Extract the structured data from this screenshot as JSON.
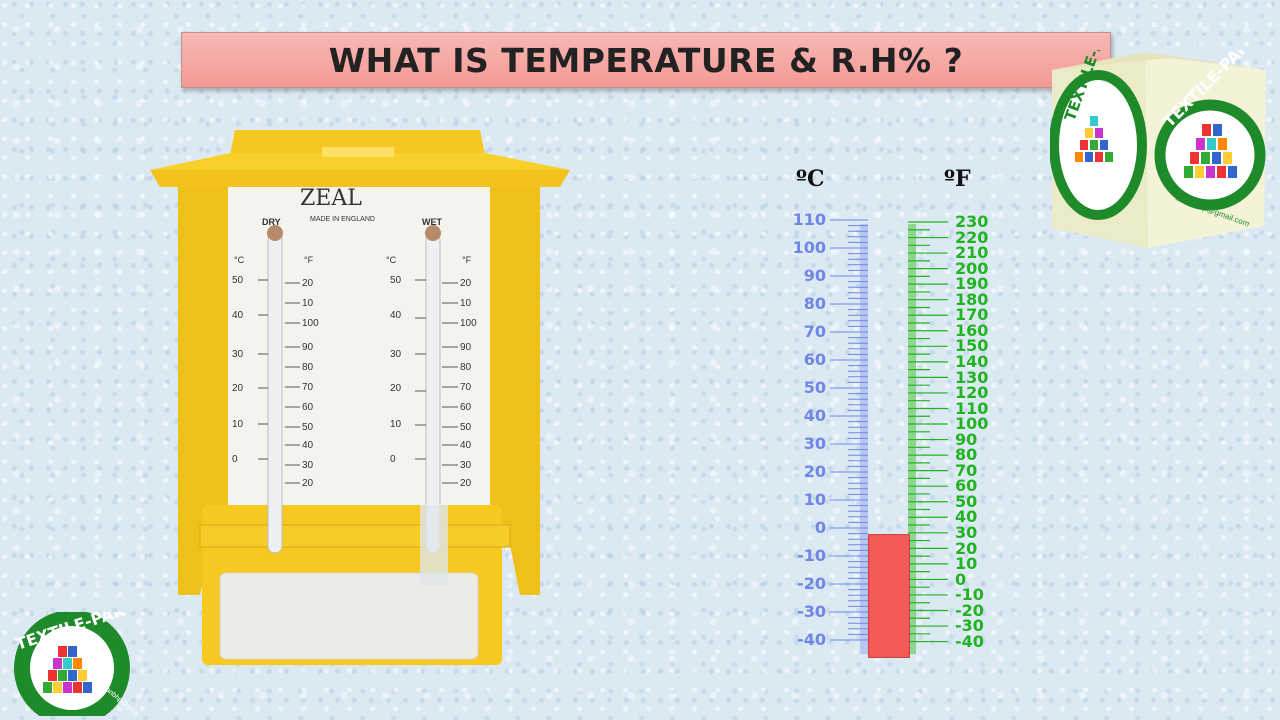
{
  "slide": {
    "title": "WHAT IS TEMPERATURE & R.H% ?"
  },
  "hygrometer": {
    "brand": "ZEAL",
    "made_in": "MADE IN ENGLAND",
    "dry_label": "DRY",
    "wet_label": "WET",
    "c_unit": "°C",
    "f_unit": "°F",
    "c_ticks": [
      "50",
      "40",
      "30",
      "20",
      "10",
      "0"
    ],
    "f_ticks": [
      "20",
      "10",
      "100",
      "90",
      "80",
      "70",
      "60",
      "50",
      "40",
      "30",
      "20"
    ]
  },
  "thermometer": {
    "celsius_unit": "ºC",
    "fahrenheit_unit": "ºF",
    "celsius_labels": [
      "110",
      "100",
      "90",
      "80",
      "70",
      "60",
      "50",
      "40",
      "30",
      "20",
      "10",
      "0",
      "-10",
      "-20",
      "-30",
      "-40"
    ],
    "fahrenheit_labels": [
      "230",
      "220",
      "210",
      "200",
      "190",
      "180",
      "170",
      "160",
      "150",
      "140",
      "130",
      "120",
      "110",
      "100",
      "90",
      "80",
      "70",
      "60",
      "50",
      "40",
      "30",
      "20",
      "10",
      "0",
      "-10",
      "-20",
      "-30",
      "-40"
    ],
    "reading_celsius": -2,
    "colors": {
      "celsius": "#6f86e6",
      "fahrenheit": "#22b322",
      "mercury": "#f25a58"
    }
  },
  "branding": {
    "name": "TEXTILE-PAK",
    "email": "imranbhp@gmail.com"
  }
}
